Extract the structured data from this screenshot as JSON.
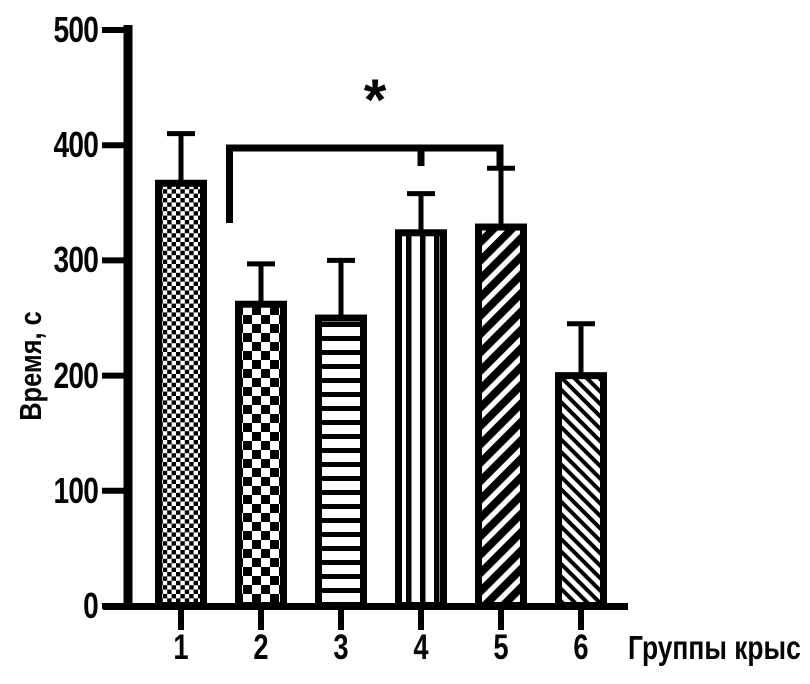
{
  "chart_data": {
    "type": "bar",
    "title": "",
    "ylabel": "Время, с",
    "xlabel": "Группы крыс",
    "categories": [
      "1",
      "2",
      "3",
      "4",
      "5",
      "6"
    ],
    "values": [
      370,
      265,
      253,
      327,
      332,
      203
    ],
    "errors": [
      40,
      32,
      47,
      31,
      48,
      42
    ],
    "error_bars": "upper only, capped",
    "ylim": [
      0,
      500
    ],
    "y_ticks": [
      "500",
      "400",
      "300",
      "200",
      "100",
      "0"
    ],
    "bar_patterns": [
      "checker-fine",
      "checker-coarse",
      "horizontal-stripes",
      "vertical-stripes",
      "diagonal-forward-thick",
      "diagonal-backward"
    ],
    "bar_fill_color": "#ffffff",
    "pattern_color": "#000000",
    "axis_color": "#000000",
    "background": "#ffffff",
    "grid": false,
    "legend": "none",
    "significance": {
      "symbol": "*",
      "compared_groups": [
        "2",
        "4",
        "5"
      ]
    }
  }
}
